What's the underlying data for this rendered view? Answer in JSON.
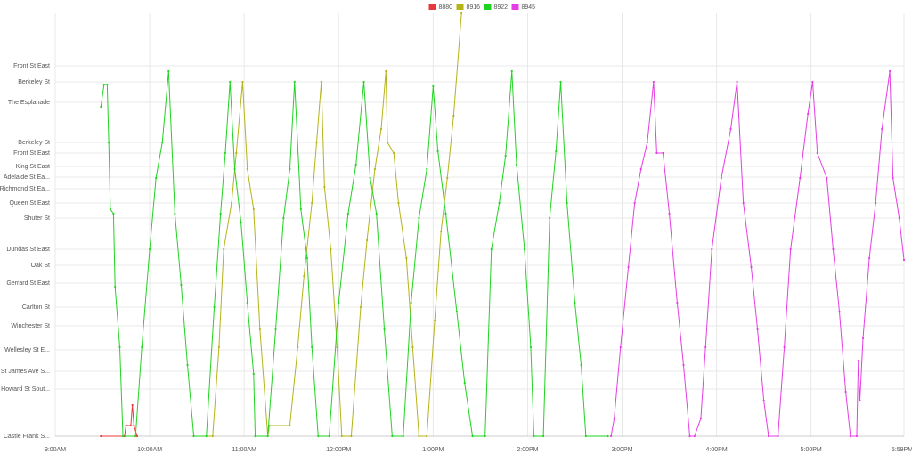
{
  "chart_data": {
    "type": "line",
    "xlim": [
      540,
      1079
    ],
    "xticks": [
      {
        "value": 540,
        "label": "9:00AM"
      },
      {
        "value": 600,
        "label": "10:00AM"
      },
      {
        "value": 660,
        "label": "11:00AM"
      },
      {
        "value": 720,
        "label": "12:00PM"
      },
      {
        "value": 780,
        "label": "1:00PM"
      },
      {
        "value": 840,
        "label": "2:00PM"
      },
      {
        "value": 900,
        "label": "3:00PM"
      },
      {
        "value": 960,
        "label": "4:00PM"
      },
      {
        "value": 1020,
        "label": "5:00PM"
      },
      {
        "value": 1079,
        "label": "5:59PM"
      }
    ],
    "ylim": [
      0,
      475
    ],
    "yticks": [
      {
        "value": 416,
        "label": "Front St East"
      },
      {
        "value": 398,
        "label": "Berkeley St"
      },
      {
        "value": 375,
        "label": "The Esplanade"
      },
      {
        "value": 330,
        "label": "Berkeley St"
      },
      {
        "value": 318,
        "label": "Front St East"
      },
      {
        "value": 303,
        "label": "King St East"
      },
      {
        "value": 291,
        "label": "Adelaide St Ea..."
      },
      {
        "value": 278,
        "label": "Richmond St Ea..."
      },
      {
        "value": 262,
        "label": "Queen St East"
      },
      {
        "value": 245,
        "label": "Shuter St"
      },
      {
        "value": 210,
        "label": "Dundas St East"
      },
      {
        "value": 192,
        "label": "Oak St"
      },
      {
        "value": 172,
        "label": "Gerrard St East"
      },
      {
        "value": 145,
        "label": "Carlton St"
      },
      {
        "value": 124,
        "label": "Winchester St"
      },
      {
        "value": 97,
        "label": "Wellesley St E..."
      },
      {
        "value": 73,
        "label": "St James Ave S..."
      },
      {
        "value": 53,
        "label": "Howard St Sout..."
      },
      {
        "value": 0,
        "label": "Castle Frank S..."
      }
    ],
    "grid": true,
    "legend": "top",
    "series": [
      {
        "name": "8880",
        "color": "#e8383d",
        "x": [
          569,
          584,
          585,
          588,
          589,
          590,
          592
        ],
        "values": [
          0,
          0,
          12,
          12,
          35,
          12,
          0
        ]
      },
      {
        "name": "8916",
        "color": "#b5b317",
        "x": [
          628,
          640,
          644,
          647,
          652,
          655,
          659,
          662,
          666,
          670,
          675,
          676,
          689,
          694,
          698,
          703,
          706,
          709,
          711,
          715,
          719,
          722,
          728,
          734,
          738,
          743,
          747,
          750,
          751,
          755,
          758,
          763,
          767,
          771,
          776,
          781,
          785,
          789,
          793,
          798
        ],
        "values": [
          0,
          0,
          100,
          210,
          262,
          318,
          398,
          300,
          255,
          120,
          0,
          12,
          12,
          100,
          180,
          262,
          330,
          398,
          280,
          210,
          100,
          0,
          0,
          145,
          220,
          300,
          345,
          410,
          330,
          318,
          262,
          200,
          100,
          0,
          0,
          130,
          230,
          290,
          360,
          475
        ]
      },
      {
        "name": "8922",
        "color": "#21d321",
        "x": [
          569,
          571,
          573,
          574,
          575,
          577,
          578,
          581,
          583,
          591,
          595,
          600,
          604,
          608,
          612,
          616,
          620,
          624,
          628,
          636,
          641,
          645,
          648,
          651,
          654,
          658,
          662,
          666,
          667,
          675,
          680,
          685,
          689,
          692,
          696,
          700,
          703,
          707,
          714,
          720,
          726,
          731,
          736,
          740,
          744,
          749,
          754,
          761,
          766,
          771,
          776,
          780,
          783,
          788,
          795,
          800,
          805,
          813,
          817,
          822,
          826,
          830,
          833,
          838,
          842,
          844,
          850,
          854,
          858,
          861,
          865,
          870,
          874,
          877,
          891
        ],
        "values": [
          370,
          395,
          395,
          330,
          255,
          250,
          168,
          100,
          0,
          0,
          100,
          210,
          290,
          330,
          410,
          250,
          170,
          80,
          0,
          0,
          145,
          250,
          318,
          398,
          300,
          240,
          150,
          70,
          0,
          0,
          120,
          245,
          300,
          398,
          255,
          200,
          100,
          0,
          0,
          150,
          250,
          305,
          398,
          290,
          250,
          120,
          0,
          0,
          150,
          245,
          300,
          393,
          320,
          250,
          140,
          60,
          0,
          0,
          210,
          262,
          315,
          410,
          305,
          210,
          100,
          0,
          0,
          245,
          320,
          398,
          262,
          150,
          80,
          0,
          0
        ]
      },
      {
        "name": "8945",
        "color": "#e43de4",
        "x": [
          893,
          895,
          899,
          904,
          908,
          912,
          916,
          920,
          922,
          926,
          930,
          935,
          939,
          943,
          946,
          950,
          953,
          957,
          963,
          969,
          973,
          977,
          982,
          986,
          990,
          993,
          999,
          1003,
          1007,
          1013,
          1018,
          1021,
          1024,
          1030,
          1034,
          1038,
          1042,
          1045,
          1049,
          1050,
          1051,
          1053,
          1057,
          1061,
          1065,
          1070,
          1072,
          1076,
          1079
        ],
        "values": [
          0,
          20,
          100,
          190,
          262,
          300,
          330,
          398,
          318,
          318,
          250,
          150,
          80,
          0,
          0,
          20,
          100,
          210,
          290,
          345,
          398,
          262,
          190,
          120,
          40,
          0,
          0,
          100,
          210,
          290,
          362,
          398,
          318,
          290,
          210,
          140,
          50,
          0,
          0,
          85,
          40,
          110,
          200,
          262,
          345,
          410,
          290,
          245,
          198
        ]
      }
    ]
  }
}
